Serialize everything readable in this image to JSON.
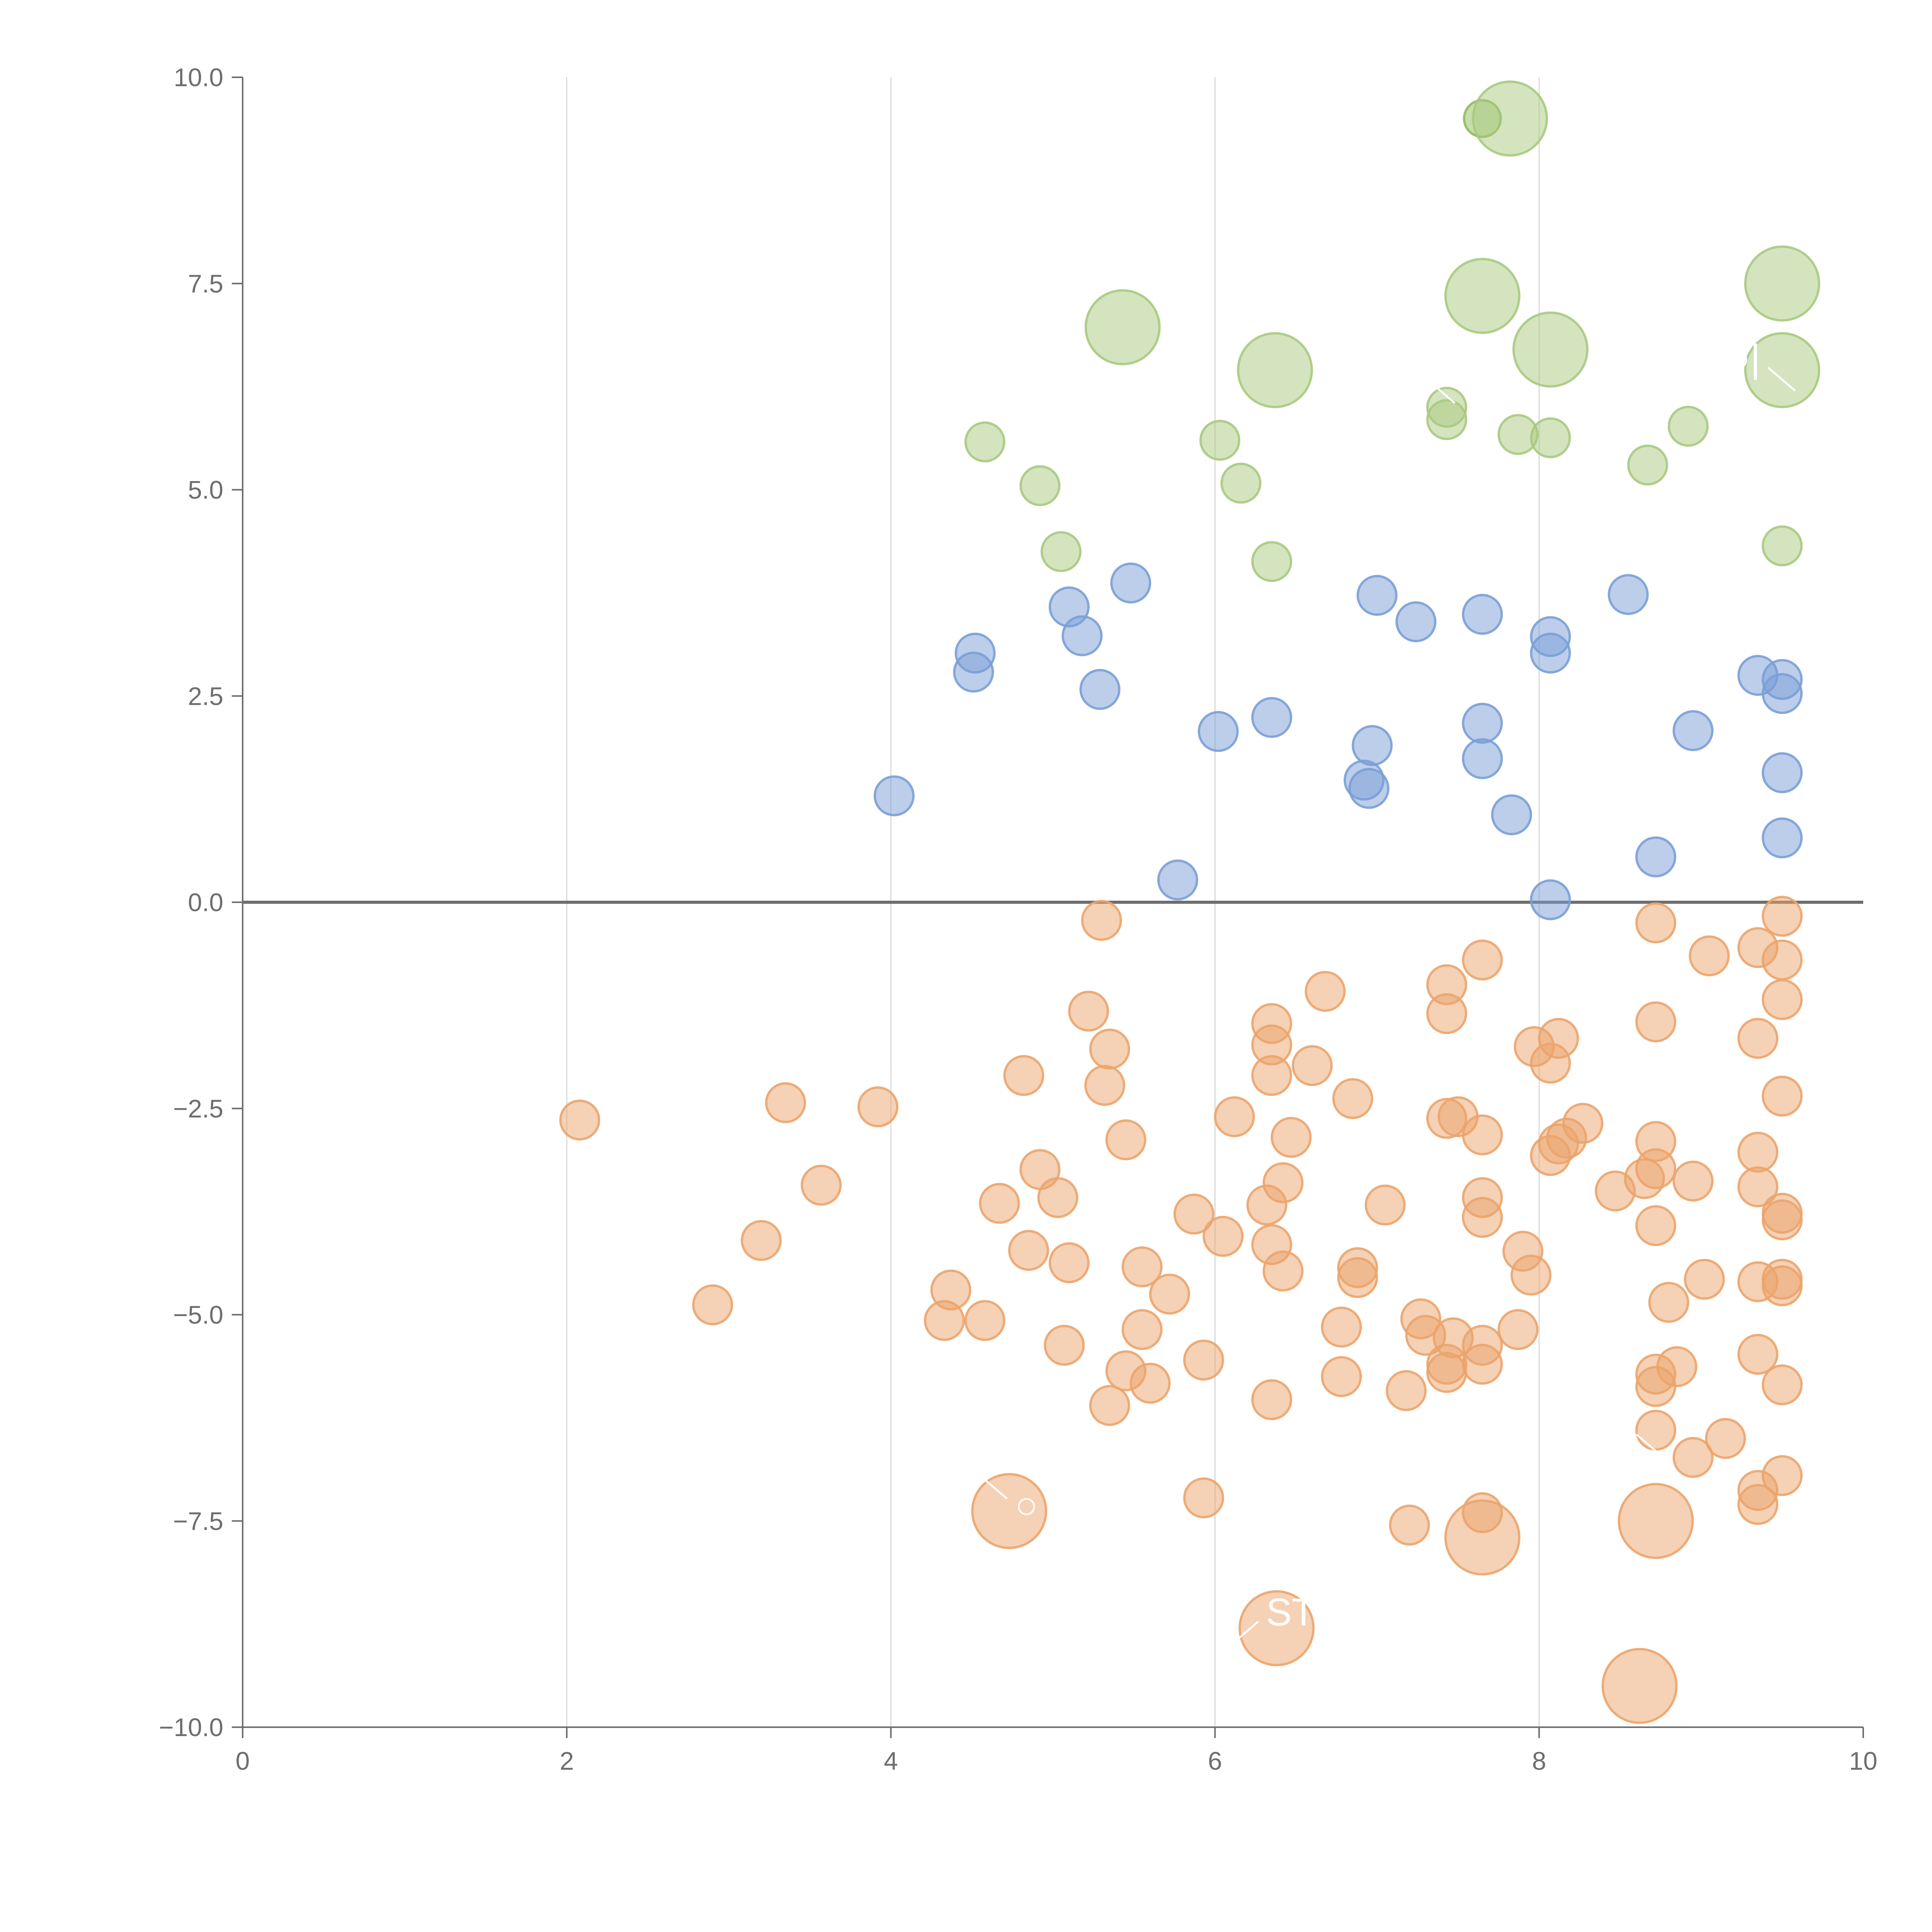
{
  "chart_data": {
    "type": "scatter",
    "title": "",
    "xlabel": "",
    "ylabel": "",
    "xlim": [
      0,
      10
    ],
    "ylim": [
      -10,
      10
    ],
    "x_ticks": [
      "0",
      "2",
      "4",
      "6",
      "8",
      "10"
    ],
    "y_ticks": [
      "10.0",
      "7.5",
      "5.0",
      "2.5",
      "0.0",
      "−2.5",
      "−5.0",
      "−7.5",
      "−10.0"
    ],
    "x_grid": true,
    "y_grid": false,
    "zero_line": true,
    "marker_opacity": 0.5,
    "series": [
      {
        "color": "#a9c97f",
        "points": [
          {
            "x": 7.65,
            "y": 9.5,
            "size": 0.9,
            "color": "#8fbb5a"
          },
          {
            "x": 7.82,
            "y": 9.5,
            "size": 2.0
          },
          {
            "x": 5.43,
            "y": 6.97,
            "size": 2.0
          },
          {
            "x": 7.65,
            "y": 7.35,
            "size": 2.0
          },
          {
            "x": 9.5,
            "y": 7.5,
            "size": 2.0
          },
          {
            "x": 6.37,
            "y": 6.45,
            "size": 2.0
          },
          {
            "x": 8.07,
            "y": 6.7,
            "size": 2.0
          },
          {
            "x": 9.5,
            "y": 6.45,
            "size": 2.0
          },
          {
            "x": 7.43,
            "y": 6.0,
            "size": 1.0
          },
          {
            "x": 7.43,
            "y": 5.85,
            "size": 1.0
          },
          {
            "x": 4.58,
            "y": 5.58,
            "size": 1.0
          },
          {
            "x": 6.03,
            "y": 5.6,
            "size": 1.0
          },
          {
            "x": 7.87,
            "y": 5.67,
            "size": 1.0
          },
          {
            "x": 8.07,
            "y": 5.63,
            "size": 1.0
          },
          {
            "x": 8.92,
            "y": 5.77,
            "size": 1.0
          },
          {
            "x": 8.67,
            "y": 5.3,
            "size": 1.0
          },
          {
            "x": 4.92,
            "y": 5.05,
            "size": 1.0
          },
          {
            "x": 6.16,
            "y": 5.08,
            "size": 1.0
          },
          {
            "x": 5.05,
            "y": 4.25,
            "size": 1.0
          },
          {
            "x": 6.35,
            "y": 4.13,
            "size": 1.0
          },
          {
            "x": 9.5,
            "y": 4.32,
            "size": 1.0
          }
        ]
      },
      {
        "color": "#7a9ed6",
        "points": [
          {
            "x": 5.48,
            "y": 3.87,
            "size": 1.0
          },
          {
            "x": 5.1,
            "y": 3.58,
            "size": 1.0
          },
          {
            "x": 5.18,
            "y": 3.23,
            "size": 1.0
          },
          {
            "x": 4.52,
            "y": 3.02,
            "size": 1.0
          },
          {
            "x": 4.51,
            "y": 2.79,
            "size": 1.0
          },
          {
            "x": 5.29,
            "y": 2.58,
            "size": 1.0
          },
          {
            "x": 4.02,
            "y": 1.29,
            "size": 1.0
          },
          {
            "x": 7.0,
            "y": 3.72,
            "size": 1.0
          },
          {
            "x": 7.24,
            "y": 3.4,
            "size": 1.0
          },
          {
            "x": 7.65,
            "y": 3.49,
            "size": 1.0
          },
          {
            "x": 8.55,
            "y": 3.73,
            "size": 1.0
          },
          {
            "x": 8.07,
            "y": 3.22,
            "size": 1.0
          },
          {
            "x": 8.07,
            "y": 3.02,
            "size": 1.0
          },
          {
            "x": 9.35,
            "y": 2.75,
            "size": 1.0
          },
          {
            "x": 9.5,
            "y": 2.7,
            "size": 1.0
          },
          {
            "x": 9.5,
            "y": 2.53,
            "size": 1.0
          },
          {
            "x": 6.02,
            "y": 2.07,
            "size": 1.0
          },
          {
            "x": 6.35,
            "y": 2.24,
            "size": 1.0
          },
          {
            "x": 6.97,
            "y": 1.9,
            "size": 1.0
          },
          {
            "x": 6.92,
            "y": 1.48,
            "size": 1.0
          },
          {
            "x": 6.95,
            "y": 1.38,
            "size": 1.0
          },
          {
            "x": 7.65,
            "y": 2.17,
            "size": 1.0
          },
          {
            "x": 7.65,
            "y": 1.74,
            "size": 1.0
          },
          {
            "x": 7.83,
            "y": 1.06,
            "size": 1.0
          },
          {
            "x": 8.95,
            "y": 2.08,
            "size": 1.0
          },
          {
            "x": 9.5,
            "y": 1.57,
            "size": 1.0
          },
          {
            "x": 9.5,
            "y": 0.78,
            "size": 1.0
          },
          {
            "x": 8.72,
            "y": 0.55,
            "size": 1.0
          },
          {
            "x": 5.77,
            "y": 0.27,
            "size": 1.0
          },
          {
            "x": 8.07,
            "y": 0.03,
            "size": 1.0
          }
        ]
      },
      {
        "color": "#eba46b",
        "points": [
          {
            "x": 5.3,
            "y": -0.22,
            "size": 1.0
          },
          {
            "x": 8.72,
            "y": -0.25,
            "size": 1.0
          },
          {
            "x": 9.5,
            "y": -0.17,
            "size": 1.0
          },
          {
            "x": 7.65,
            "y": -0.7,
            "size": 1.0
          },
          {
            "x": 9.05,
            "y": -0.65,
            "size": 1.0
          },
          {
            "x": 9.35,
            "y": -0.55,
            "size": 1.0
          },
          {
            "x": 9.5,
            "y": -0.7,
            "size": 1.0
          },
          {
            "x": 6.68,
            "y": -1.08,
            "size": 1.0
          },
          {
            "x": 7.43,
            "y": -1.0,
            "size": 1.0
          },
          {
            "x": 7.43,
            "y": -1.35,
            "size": 1.0
          },
          {
            "x": 9.5,
            "y": -1.18,
            "size": 1.0
          },
          {
            "x": 5.22,
            "y": -1.32,
            "size": 1.0
          },
          {
            "x": 6.35,
            "y": -1.47,
            "size": 1.0
          },
          {
            "x": 6.35,
            "y": -1.73,
            "size": 1.0
          },
          {
            "x": 8.72,
            "y": -1.45,
            "size": 1.0
          },
          {
            "x": 8.12,
            "y": -1.65,
            "size": 1.0
          },
          {
            "x": 7.97,
            "y": -1.75,
            "size": 1.0
          },
          {
            "x": 9.35,
            "y": -1.65,
            "size": 1.0
          },
          {
            "x": 5.35,
            "y": -1.78,
            "size": 1.0
          },
          {
            "x": 6.6,
            "y": -1.98,
            "size": 1.0
          },
          {
            "x": 8.07,
            "y": -1.95,
            "size": 1.0
          },
          {
            "x": 4.82,
            "y": -2.1,
            "size": 1.0
          },
          {
            "x": 6.35,
            "y": -2.1,
            "size": 1.0
          },
          {
            "x": 5.32,
            "y": -2.22,
            "size": 1.0
          },
          {
            "x": 6.85,
            "y": -2.38,
            "size": 1.0
          },
          {
            "x": 9.5,
            "y": -2.35,
            "size": 1.0
          },
          {
            "x": 2.08,
            "y": -2.64,
            "size": 1.0
          },
          {
            "x": 3.35,
            "y": -2.43,
            "size": 1.0
          },
          {
            "x": 3.92,
            "y": -2.48,
            "size": 1.0
          },
          {
            "x": 6.12,
            "y": -2.6,
            "size": 1.0
          },
          {
            "x": 7.43,
            "y": -2.62,
            "size": 1.0
          },
          {
            "x": 7.5,
            "y": -2.6,
            "size": 1.0
          },
          {
            "x": 8.27,
            "y": -2.68,
            "size": 1.0
          },
          {
            "x": 5.45,
            "y": -2.88,
            "size": 1.0
          },
          {
            "x": 6.47,
            "y": -2.85,
            "size": 1.0
          },
          {
            "x": 7.65,
            "y": -2.82,
            "size": 1.0
          },
          {
            "x": 8.17,
            "y": -2.86,
            "size": 1.0
          },
          {
            "x": 8.12,
            "y": -2.93,
            "size": 1.0
          },
          {
            "x": 8.72,
            "y": -2.9,
            "size": 1.0
          },
          {
            "x": 8.07,
            "y": -3.07,
            "size": 1.0
          },
          {
            "x": 9.35,
            "y": -3.03,
            "size": 1.0
          },
          {
            "x": 4.92,
            "y": -3.24,
            "size": 1.0
          },
          {
            "x": 8.72,
            "y": -3.23,
            "size": 1.0
          },
          {
            "x": 8.65,
            "y": -3.35,
            "size": 1.0
          },
          {
            "x": 8.95,
            "y": -3.38,
            "size": 1.0
          },
          {
            "x": 3.57,
            "y": -3.43,
            "size": 1.0
          },
          {
            "x": 6.42,
            "y": -3.4,
            "size": 1.0
          },
          {
            "x": 8.47,
            "y": -3.5,
            "size": 1.0
          },
          {
            "x": 9.35,
            "y": -3.45,
            "size": 1.0
          },
          {
            "x": 5.03,
            "y": -3.58,
            "size": 1.0
          },
          {
            "x": 7.65,
            "y": -3.58,
            "size": 1.0
          },
          {
            "x": 4.67,
            "y": -3.65,
            "size": 1.0
          },
          {
            "x": 6.32,
            "y": -3.67,
            "size": 1.0
          },
          {
            "x": 7.05,
            "y": -3.67,
            "size": 1.0
          },
          {
            "x": 5.87,
            "y": -3.78,
            "size": 1.0
          },
          {
            "x": 7.65,
            "y": -3.82,
            "size": 1.0
          },
          {
            "x": 9.5,
            "y": -3.77,
            "size": 1.0
          },
          {
            "x": 9.5,
            "y": -3.85,
            "size": 1.0
          },
          {
            "x": 8.72,
            "y": -3.92,
            "size": 1.0
          },
          {
            "x": 3.2,
            "y": -4.1,
            "size": 1.0
          },
          {
            "x": 6.05,
            "y": -4.05,
            "size": 1.0
          },
          {
            "x": 6.35,
            "y": -4.15,
            "size": 1.0
          },
          {
            "x": 4.85,
            "y": -4.22,
            "size": 1.0
          },
          {
            "x": 7.9,
            "y": -4.23,
            "size": 1.0
          },
          {
            "x": 5.1,
            "y": -4.37,
            "size": 1.0
          },
          {
            "x": 5.55,
            "y": -4.42,
            "size": 1.0
          },
          {
            "x": 6.42,
            "y": -4.47,
            "size": 1.0
          },
          {
            "x": 6.88,
            "y": -4.43,
            "size": 1.0
          },
          {
            "x": 6.88,
            "y": -4.55,
            "size": 1.0
          },
          {
            "x": 7.95,
            "y": -4.52,
            "size": 1.0
          },
          {
            "x": 9.02,
            "y": -4.57,
            "size": 1.0
          },
          {
            "x": 9.35,
            "y": -4.6,
            "size": 1.0
          },
          {
            "x": 9.5,
            "y": -4.57,
            "size": 1.0
          },
          {
            "x": 9.5,
            "y": -4.65,
            "size": 1.0
          },
          {
            "x": 4.37,
            "y": -4.7,
            "size": 1.0
          },
          {
            "x": 5.72,
            "y": -4.75,
            "size": 1.0
          },
          {
            "x": 8.8,
            "y": -4.85,
            "size": 1.0
          },
          {
            "x": 2.9,
            "y": -4.88,
            "size": 1.0
          },
          {
            "x": 4.33,
            "y": -5.07,
            "size": 1.0
          },
          {
            "x": 4.58,
            "y": -5.07,
            "size": 1.0
          },
          {
            "x": 7.27,
            "y": -5.05,
            "size": 1.0
          },
          {
            "x": 5.55,
            "y": -5.18,
            "size": 1.0
          },
          {
            "x": 6.78,
            "y": -5.15,
            "size": 1.0
          },
          {
            "x": 7.87,
            "y": -5.18,
            "size": 1.0
          },
          {
            "x": 7.3,
            "y": -5.25,
            "size": 1.0
          },
          {
            "x": 7.47,
            "y": -5.28,
            "size": 1.0
          },
          {
            "x": 5.07,
            "y": -5.37,
            "size": 1.0
          },
          {
            "x": 7.65,
            "y": -5.37,
            "size": 1.0
          },
          {
            "x": 9.35,
            "y": -5.48,
            "size": 1.0
          },
          {
            "x": 5.93,
            "y": -5.55,
            "size": 1.0
          },
          {
            "x": 7.43,
            "y": -5.6,
            "size": 1.0
          },
          {
            "x": 7.65,
            "y": -5.6,
            "size": 1.0
          },
          {
            "x": 8.85,
            "y": -5.63,
            "size": 1.0
          },
          {
            "x": 5.45,
            "y": -5.68,
            "size": 1.0
          },
          {
            "x": 7.43,
            "y": -5.7,
            "size": 1.0
          },
          {
            "x": 8.72,
            "y": -5.72,
            "size": 1.0
          },
          {
            "x": 6.78,
            "y": -5.75,
            "size": 1.0
          },
          {
            "x": 5.6,
            "y": -5.83,
            "size": 1.0
          },
          {
            "x": 8.72,
            "y": -5.87,
            "size": 1.0
          },
          {
            "x": 9.5,
            "y": -5.85,
            "size": 1.0
          },
          {
            "x": 7.18,
            "y": -5.92,
            "size": 1.0
          },
          {
            "x": 5.35,
            "y": -6.1,
            "size": 1.0
          },
          {
            "x": 6.35,
            "y": -6.03,
            "size": 1.0
          },
          {
            "x": 9.15,
            "y": -6.5,
            "size": 1.0
          },
          {
            "x": 8.72,
            "y": -6.4,
            "size": 1.0
          },
          {
            "x": 8.95,
            "y": -6.73,
            "size": 1.0
          },
          {
            "x": 9.5,
            "y": -6.95,
            "size": 1.0
          },
          {
            "x": 9.35,
            "y": -7.13,
            "size": 1.0
          },
          {
            "x": 9.35,
            "y": -7.3,
            "size": 1.0
          },
          {
            "x": 5.93,
            "y": -7.22,
            "size": 1.0
          },
          {
            "x": 7.65,
            "y": -7.4,
            "size": 1.0
          },
          {
            "x": 7.2,
            "y": -7.55,
            "size": 1.0
          },
          {
            "x": 4.73,
            "y": -7.38,
            "size": 2.0
          },
          {
            "x": 8.72,
            "y": -7.5,
            "size": 2.0
          },
          {
            "x": 7.65,
            "y": -7.7,
            "size": 2.0
          },
          {
            "x": 6.38,
            "y": -8.8,
            "size": 2.0
          },
          {
            "x": 8.62,
            "y": -9.5,
            "size": 2.0
          }
        ]
      }
    ],
    "annotations": [
      {
        "text": "○",
        "x": 7.48,
        "y": 6.05,
        "dx": -1,
        "dy": -1
      },
      {
        "text": "○|",
        "x": 9.58,
        "y": 6.2,
        "dx": -1,
        "dy": -1
      },
      {
        "text": "○",
        "x": 4.55,
        "y": -6.95,
        "dx": 1,
        "dy": 1
      },
      {
        "text": "",
        "x": 8.6,
        "y": -6.45,
        "dx": 1,
        "dy": 1
      },
      {
        "text": "ST",
        "x": 6.1,
        "y": -9.0,
        "dx": 1,
        "dy": -1
      }
    ]
  }
}
